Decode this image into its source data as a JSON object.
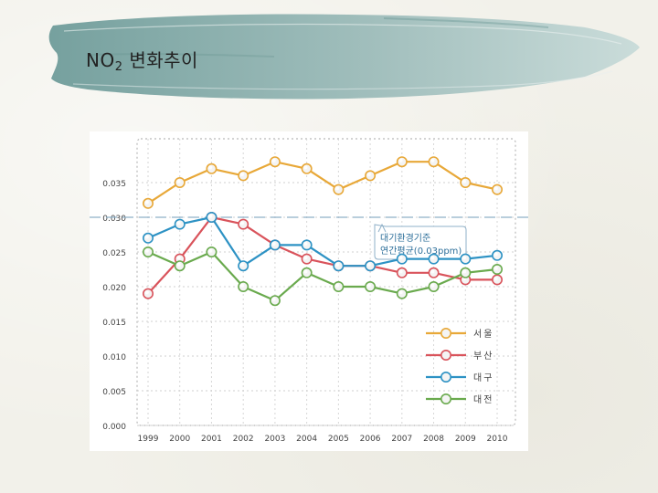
{
  "slide": {
    "title_main": "NO",
    "title_sub": "2",
    "title_rest": "변화추이"
  },
  "colors": {
    "seoul": "#e8a838",
    "busan": "#d9535b",
    "daegu": "#2d92c4",
    "daejeon": "#6aaa4e",
    "reference": "#8fb0c8",
    "brush": "#7fa6a4"
  },
  "chart_data": {
    "type": "line",
    "x": [
      "1999",
      "2000",
      "2001",
      "2002",
      "2003",
      "2004",
      "2005",
      "2006",
      "2007",
      "2008",
      "2009",
      "2010"
    ],
    "yticks": [
      "0.000",
      "0.005",
      "0.010",
      "0.015",
      "0.020",
      "0.025",
      "0.030",
      "0.035"
    ],
    "ylim": [
      0,
      0.04
    ],
    "series": [
      {
        "name": "서울",
        "color": "#e8a838",
        "values": [
          0.032,
          0.035,
          0.037,
          0.036,
          0.038,
          0.037,
          0.034,
          0.036,
          0.038,
          0.038,
          0.035,
          0.034
        ]
      },
      {
        "name": "부산",
        "color": "#d9535b",
        "values": [
          0.019,
          0.024,
          0.03,
          0.029,
          0.026,
          0.024,
          0.023,
          0.023,
          0.022,
          0.022,
          0.021,
          0.021
        ]
      },
      {
        "name": "대구",
        "color": "#2d92c4",
        "values": [
          0.027,
          0.029,
          0.03,
          0.023,
          0.026,
          0.026,
          0.023,
          0.023,
          0.024,
          0.024,
          0.024,
          0.0245
        ]
      },
      {
        "name": "대전",
        "color": "#6aaa4e",
        "values": [
          0.025,
          0.023,
          0.025,
          0.02,
          0.018,
          0.022,
          0.02,
          0.02,
          0.019,
          0.02,
          0.022,
          0.0225
        ]
      }
    ],
    "reference_line": {
      "value": 0.03,
      "label_line1": "대기환경기준",
      "label_line2": "연간평균(0.03ppm)"
    },
    "legend_placement": "bottom-right"
  }
}
